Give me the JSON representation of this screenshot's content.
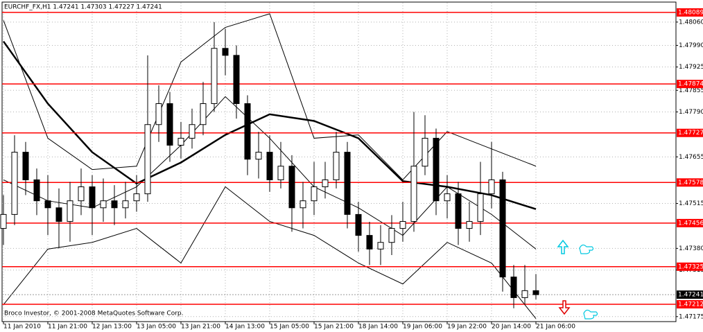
{
  "chart_data": {
    "type": "candlestick",
    "title": "EURCHF_FX,H1 1.47241 1.47303 1.47227 1.47241",
    "footer": "Broco Investor, © 2001-2008 MetaQuotes Software Corp.",
    "categories": [
      "11 Jan 2010",
      null,
      null,
      null,
      "11 Jan 21:00",
      null,
      null,
      null,
      "12 Jan 13:00",
      null,
      null,
      null,
      "13 Jan 05:00",
      null,
      null,
      null,
      "13 Jan 21:00",
      null,
      null,
      null,
      "14 Jan 13:00",
      null,
      null,
      null,
      "15 Jan 05:00",
      null,
      null,
      null,
      "15 Jan 21:00",
      null,
      null,
      null,
      "18 Jan 14:00",
      null,
      null,
      null,
      "19 Jan 06:00",
      null,
      null,
      null,
      "19 Jan 22:00",
      null,
      null,
      null,
      "20 Jan 14:00",
      null,
      null,
      null,
      "21 Jan 06:00"
    ],
    "open": [
      1.4744,
      1.47482,
      1.47669,
      1.47586,
      1.47523,
      1.47502,
      1.47461,
      1.47523,
      1.47565,
      1.47502,
      1.47523,
      1.47502,
      1.47523,
      1.47544,
      1.47752,
      1.47815,
      1.4769,
      1.47711,
      1.47752,
      1.47815,
      1.47981,
      1.4796,
      1.47815,
      1.47648,
      1.47669,
      1.47586,
      1.47627,
      1.47502,
      1.47523,
      1.47565,
      1.47586,
      1.47669,
      1.47482,
      1.47419,
      1.47378,
      1.47398,
      1.4744,
      1.47461,
      1.47627,
      1.47711,
      1.47523,
      1.47544,
      1.4744,
      1.47461,
      1.47544,
      1.47586,
      1.47294,
      1.47232,
      1.47253
    ],
    "high": [
      1.4754,
      1.4772,
      1.477,
      1.4762,
      1.476,
      1.4756,
      1.4758,
      1.4762,
      1.476,
      1.4759,
      1.4757,
      1.4758,
      1.476,
      1.4796,
      1.4787,
      1.4785,
      1.4776,
      1.478,
      1.4788,
      1.4806,
      1.4804,
      1.4799,
      1.4784,
      1.4773,
      1.4772,
      1.477,
      1.4766,
      1.4758,
      1.4764,
      1.4764,
      1.4773,
      1.477,
      1.4752,
      1.4746,
      1.4745,
      1.4748,
      1.4752,
      1.4779,
      1.4778,
      1.4774,
      1.476,
      1.4758,
      1.4752,
      1.4764,
      1.477,
      1.4761,
      1.4733,
      1.4733,
      1.47303
    ],
    "low": [
      1.4739,
      1.4745,
      1.4754,
      1.4748,
      1.4742,
      1.4738,
      1.474,
      1.4748,
      1.4742,
      1.4746,
      1.4745,
      1.4747,
      1.4749,
      1.4752,
      1.477,
      1.4764,
      1.4765,
      1.4768,
      1.4772,
      1.4779,
      1.479,
      1.4777,
      1.476,
      1.4759,
      1.4755,
      1.4756,
      1.4743,
      1.4744,
      1.4748,
      1.4753,
      1.4756,
      1.4744,
      1.4737,
      1.4733,
      1.4733,
      1.4736,
      1.474,
      1.4743,
      1.476,
      1.4748,
      1.4747,
      1.4739,
      1.474,
      1.4742,
      1.475,
      1.4725,
      1.472,
      1.4721,
      1.47227
    ],
    "close": [
      1.47482,
      1.47669,
      1.47586,
      1.47523,
      1.47502,
      1.47461,
      1.47523,
      1.47565,
      1.47502,
      1.47523,
      1.47502,
      1.47523,
      1.47544,
      1.47752,
      1.47815,
      1.4769,
      1.47711,
      1.47752,
      1.47815,
      1.47981,
      1.4796,
      1.47815,
      1.47648,
      1.47669,
      1.47586,
      1.47627,
      1.47502,
      1.47523,
      1.47565,
      1.47586,
      1.47669,
      1.47482,
      1.47419,
      1.47378,
      1.47398,
      1.4744,
      1.47461,
      1.47627,
      1.47711,
      1.47523,
      1.47544,
      1.4744,
      1.47461,
      1.47544,
      1.47586,
      1.47294,
      1.47232,
      1.47253,
      1.47241
    ],
    "moving_average": {
      "color": "#000000",
      "x": [
        0,
        4,
        8,
        12,
        16,
        20,
        24,
        28,
        32,
        36,
        40,
        44,
        48
      ],
      "values": [
        1.48002,
        1.47815,
        1.47669,
        1.47575,
        1.47638,
        1.47721,
        1.47783,
        1.47763,
        1.47711,
        1.47582,
        1.47565,
        1.4754,
        1.47498
      ]
    },
    "bands": [
      {
        "color": "#000000",
        "x": [
          0,
          4,
          8,
          12,
          16,
          20,
          24,
          28,
          32,
          36,
          40,
          44,
          48
        ],
        "values": [
          1.48065,
          1.47711,
          1.47617,
          1.47627,
          1.4794,
          1.48044,
          1.48085,
          1.47711,
          1.47721,
          1.47586,
          1.47731,
          1.47679,
          1.47627
        ]
      },
      {
        "color": "#000000",
        "x": [
          0,
          4,
          8,
          12,
          16,
          20,
          24,
          28,
          32,
          36,
          40,
          44,
          48
        ],
        "values": [
          1.47586,
          1.47523,
          1.47502,
          1.47565,
          1.4769,
          1.47836,
          1.47711,
          1.47565,
          1.47502,
          1.47419,
          1.47565,
          1.47482,
          1.47378
        ]
      },
      {
        "color": "#000000",
        "x": [
          0,
          4,
          8,
          12,
          16,
          20,
          24,
          28,
          32,
          36,
          40,
          44,
          48
        ],
        "values": [
          1.47211,
          1.47378,
          1.47398,
          1.4744,
          1.47336,
          1.47565,
          1.47461,
          1.47419,
          1.47336,
          1.47273,
          1.47398,
          1.47336,
          1.47169
        ]
      }
    ],
    "levels": {
      "color": "#ff0000",
      "values": [
        1.48089,
        1.47874,
        1.47727,
        1.47578,
        1.47456,
        1.47325,
        1.47212
      ]
    },
    "last_price": 1.47241,
    "ylim": [
      1.4716,
      1.48118
    ],
    "yticks": [
      {
        "value": 1.4806,
        "label": "1.48060"
      },
      {
        "value": 1.4799,
        "label": "1.47990"
      },
      1.47925,
      1.47855,
      {
        "value": 1.4779,
        "label": "1.47790"
      },
      1.47655,
      1.47515,
      {
        "value": 1.4738,
        "label": "1.47380"
      },
      1.47315,
      1.47175
    ],
    "grid": true
  }
}
